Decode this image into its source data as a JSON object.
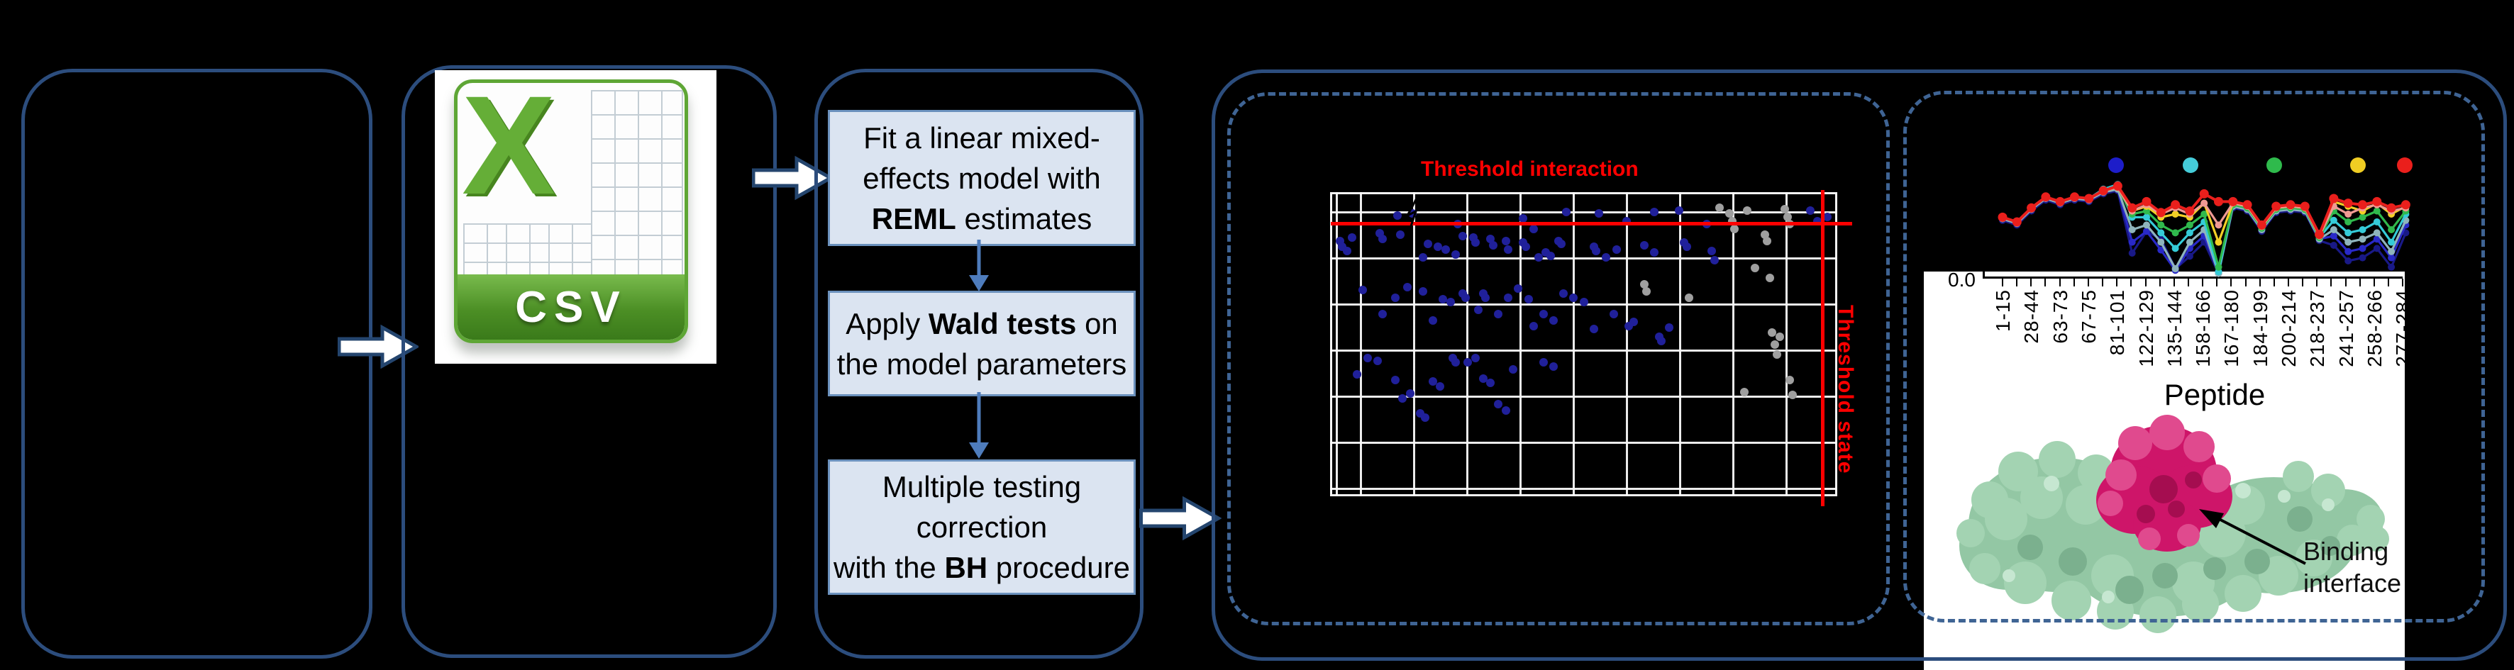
{
  "colors": {
    "panel_border": "#2c4d7d",
    "dashed_border": "#3f6494",
    "flow_box_fill": "#dbe4f1",
    "flow_box_border": "#6b91bd",
    "flow_arrow": "#4e7cbc",
    "threshold_red": "#ff0000",
    "csv_green": "#5ea635",
    "protein_green": "#93c7a4",
    "protein_magenta": "#ce1569"
  },
  "csv_icon": {
    "sheet_letter": "X",
    "banner_label": "CSV"
  },
  "flowchart": {
    "boxes": [
      {
        "name": "fit-model",
        "lines": [
          [
            [
              "Fit a linear mixed-",
              false
            ]
          ],
          [
            [
              "effects model with",
              false
            ]
          ],
          [
            [
              "REML",
              true
            ],
            [
              " estimates",
              false
            ]
          ]
        ]
      },
      {
        "name": "wald-tests",
        "lines": [
          [
            [
              "Apply ",
              false
            ],
            [
              "Wald tests",
              true
            ],
            [
              " on",
              false
            ]
          ],
          [
            [
              "the model parameters",
              false
            ]
          ]
        ]
      },
      {
        "name": "bh-correction",
        "lines": [
          [
            [
              "Multiple testing",
              false
            ]
          ],
          [
            [
              "correction",
              false
            ]
          ],
          [
            [
              "with the ",
              false
            ],
            [
              "BH",
              true
            ],
            [
              " procedure",
              false
            ]
          ]
        ]
      }
    ]
  },
  "protein": {
    "annotation_line1": "Binding",
    "annotation_line2": "interface"
  },
  "chart_data": [
    {
      "type": "scatter",
      "title": "Threshold interaction",
      "vline_label": "Threshold state",
      "xlabel": "",
      "ylabel": "",
      "coords_note": "points are fractions of the plot area, y measured downward from top",
      "threshold_hline_y": 0.098,
      "threshold_vline_x": 0.972,
      "grid": "white gridlines on black background",
      "series": [
        {
          "name": "significant-peptides",
          "color": "#20209a",
          "points": [
            [
              0.13,
              0.07
            ],
            [
              0.25,
              0.1
            ],
            [
              0.38,
              0.08
            ],
            [
              0.4,
              0.115
            ],
            [
              0.465,
              0.06
            ],
            [
              0.53,
              0.065
            ],
            [
              0.585,
              0.09
            ],
            [
              0.64,
              0.06
            ],
            [
              0.69,
              0.055
            ],
            [
              0.745,
              0.1
            ],
            [
              0.95,
              0.055
            ],
            [
              0.965,
              0.09
            ],
            [
              0.985,
              0.075
            ],
            [
              0.015,
              0.155
            ],
            [
              0.02,
              0.175
            ],
            [
              0.03,
              0.19
            ],
            [
              0.04,
              0.145
            ],
            [
              0.095,
              0.13
            ],
            [
              0.1,
              0.15
            ],
            [
              0.135,
              0.135
            ],
            [
              0.16,
              0.065
            ],
            [
              0.18,
              0.21
            ],
            [
              0.19,
              0.165
            ],
            [
              0.21,
              0.175
            ],
            [
              0.225,
              0.185
            ],
            [
              0.245,
              0.2
            ],
            [
              0.26,
              0.14
            ],
            [
              0.28,
              0.145
            ],
            [
              0.285,
              0.16
            ],
            [
              0.315,
              0.15
            ],
            [
              0.32,
              0.17
            ],
            [
              0.345,
              0.155
            ],
            [
              0.35,
              0.185
            ],
            [
              0.38,
              0.16
            ],
            [
              0.385,
              0.175
            ],
            [
              0.41,
              0.21
            ],
            [
              0.425,
              0.195
            ],
            [
              0.435,
              0.205
            ],
            [
              0.45,
              0.155
            ],
            [
              0.455,
              0.165
            ],
            [
              0.52,
              0.175
            ],
            [
              0.525,
              0.19
            ],
            [
              0.545,
              0.21
            ],
            [
              0.565,
              0.185
            ],
            [
              0.62,
              0.17
            ],
            [
              0.64,
              0.195
            ],
            [
              0.7,
              0.16
            ],
            [
              0.705,
              0.175
            ],
            [
              0.755,
              0.19
            ],
            [
              0.76,
              0.22
            ],
            [
              0.06,
              0.32
            ],
            [
              0.1,
              0.4
            ],
            [
              0.125,
              0.345
            ],
            [
              0.15,
              0.31
            ],
            [
              0.18,
              0.325
            ],
            [
              0.2,
              0.42
            ],
            [
              0.22,
              0.35
            ],
            [
              0.235,
              0.36
            ],
            [
              0.26,
              0.33
            ],
            [
              0.265,
              0.345
            ],
            [
              0.29,
              0.385
            ],
            [
              0.3,
              0.33
            ],
            [
              0.305,
              0.345
            ],
            [
              0.33,
              0.4
            ],
            [
              0.35,
              0.345
            ],
            [
              0.37,
              0.315
            ],
            [
              0.39,
              0.35
            ],
            [
              0.4,
              0.44
            ],
            [
              0.42,
              0.4
            ],
            [
              0.44,
              0.42
            ],
            [
              0.46,
              0.33
            ],
            [
              0.48,
              0.345
            ],
            [
              0.5,
              0.36
            ],
            [
              0.52,
              0.45
            ],
            [
              0.56,
              0.4
            ],
            [
              0.59,
              0.44
            ],
            [
              0.6,
              0.425
            ],
            [
              0.65,
              0.475
            ],
            [
              0.655,
              0.49
            ],
            [
              0.67,
              0.445
            ],
            [
              0.05,
              0.6
            ],
            [
              0.07,
              0.545
            ],
            [
              0.09,
              0.555
            ],
            [
              0.125,
              0.62
            ],
            [
              0.14,
              0.68
            ],
            [
              0.155,
              0.665
            ],
            [
              0.175,
              0.73
            ],
            [
              0.185,
              0.745
            ],
            [
              0.2,
              0.625
            ],
            [
              0.215,
              0.64
            ],
            [
              0.24,
              0.545
            ],
            [
              0.245,
              0.56
            ],
            [
              0.27,
              0.56
            ],
            [
              0.285,
              0.545
            ],
            [
              0.3,
              0.615
            ],
            [
              0.315,
              0.63
            ],
            [
              0.33,
              0.7
            ],
            [
              0.345,
              0.72
            ],
            [
              0.36,
              0.585
            ],
            [
              0.42,
              0.56
            ],
            [
              0.44,
              0.575
            ]
          ]
        },
        {
          "name": "non-significant-peptides",
          "color": "#9f9f9f",
          "points": [
            [
              0.77,
              0.045
            ],
            [
              0.79,
              0.065
            ],
            [
              0.795,
              0.09
            ],
            [
              0.8,
              0.115
            ],
            [
              0.825,
              0.055
            ],
            [
              0.86,
              0.135
            ],
            [
              0.865,
              0.155
            ],
            [
              0.9,
              0.05
            ],
            [
              0.905,
              0.075
            ],
            [
              0.91,
              0.1
            ],
            [
              0.62,
              0.3
            ],
            [
              0.625,
              0.325
            ],
            [
              0.71,
              0.345
            ],
            [
              0.84,
              0.245
            ],
            [
              0.87,
              0.28
            ],
            [
              0.875,
              0.46
            ],
            [
              0.88,
              0.5
            ],
            [
              0.885,
              0.535
            ],
            [
              0.89,
              0.475
            ],
            [
              0.91,
              0.62
            ],
            [
              0.915,
              0.67
            ],
            [
              0.82,
              0.66
            ]
          ]
        }
      ]
    },
    {
      "type": "line",
      "xlabel": "Peptide",
      "ytick_label": "0.0",
      "ylim": [
        0,
        1
      ],
      "categories": [
        "1-15",
        "28-44",
        "63-73",
        "67-75",
        "81-101",
        "122-129",
        "135-144",
        "158-166",
        "167-180",
        "184-199",
        "200-214",
        "218-237",
        "241-257",
        "258-266",
        "277-284"
      ],
      "legend_dot_colors": [
        "#1d1dc9",
        "#45ccd9",
        "#2fba4c",
        "#f0cd23",
        "#ea1f1c"
      ],
      "legend_x": [
        223,
        328,
        446,
        564,
        630
      ],
      "legend_y": 83,
      "series": [
        {
          "name": "navy",
          "color": "#191987",
          "values": [
            0.36,
            0.33,
            0.42,
            0.49,
            0.46,
            0.49,
            0.48,
            0.53,
            0.55,
            0.15,
            0.29,
            0.24,
            0.05,
            0.13,
            0.22,
            0.02,
            0.44,
            0.42,
            0.29,
            0.41,
            0.42,
            0.41,
            0.23,
            0.2,
            0.1,
            0.12,
            0.18,
            0.06,
            0.28
          ]
        },
        {
          "name": "blue",
          "color": "#2929c8",
          "values": [
            0.37,
            0.34,
            0.43,
            0.5,
            0.47,
            0.5,
            0.49,
            0.54,
            0.56,
            0.22,
            0.29,
            0.17,
            0.04,
            0.18,
            0.26,
            0.03,
            0.45,
            0.43,
            0.3,
            0.42,
            0.43,
            0.42,
            0.24,
            0.26,
            0.16,
            0.18,
            0.24,
            0.12,
            0.33
          ]
        },
        {
          "name": "steel",
          "color": "#8fb4bc",
          "values": [
            0.37,
            0.34,
            0.43,
            0.5,
            0.47,
            0.5,
            0.49,
            0.54,
            0.56,
            0.3,
            0.33,
            0.22,
            0.05,
            0.22,
            0.3,
            0.02,
            0.45,
            0.43,
            0.3,
            0.42,
            0.43,
            0.42,
            0.24,
            0.3,
            0.22,
            0.24,
            0.28,
            0.16,
            0.36
          ]
        },
        {
          "name": "cyan",
          "color": "#35cbd8",
          "values": [
            0.38,
            0.35,
            0.44,
            0.51,
            0.48,
            0.51,
            0.5,
            0.56,
            0.59,
            0.38,
            0.38,
            0.28,
            0.18,
            0.28,
            0.35,
            0.03,
            0.46,
            0.44,
            0.31,
            0.43,
            0.44,
            0.43,
            0.25,
            0.36,
            0.28,
            0.3,
            0.35,
            0.22,
            0.4
          ]
        },
        {
          "name": "green",
          "color": "#30b94d",
          "values": [
            0.38,
            0.35,
            0.44,
            0.51,
            0.48,
            0.51,
            0.5,
            0.55,
            0.57,
            0.4,
            0.42,
            0.33,
            0.28,
            0.33,
            0.4,
            0.06,
            0.46,
            0.44,
            0.31,
            0.43,
            0.44,
            0.43,
            0.25,
            0.42,
            0.35,
            0.38,
            0.42,
            0.3,
            0.42
          ]
        },
        {
          "name": "yellow",
          "color": "#f2cf26",
          "values": [
            0.38,
            0.35,
            0.44,
            0.51,
            0.48,
            0.51,
            0.5,
            0.55,
            0.57,
            0.42,
            0.45,
            0.38,
            0.4,
            0.38,
            0.47,
            0.22,
            0.47,
            0.45,
            0.32,
            0.44,
            0.45,
            0.44,
            0.26,
            0.48,
            0.45,
            0.42,
            0.47,
            0.4,
            0.45
          ]
        },
        {
          "name": "salmon",
          "color": "#f09a93",
          "values": [
            0.38,
            0.35,
            0.44,
            0.51,
            0.48,
            0.51,
            0.5,
            0.55,
            0.57,
            0.42,
            0.46,
            0.4,
            0.44,
            0.4,
            0.47,
            0.33,
            0.47,
            0.45,
            0.32,
            0.44,
            0.45,
            0.44,
            0.26,
            0.45,
            0.4,
            0.44,
            0.46,
            0.42,
            0.44
          ]
        },
        {
          "name": "red",
          "color": "#ea1f1c",
          "values": [
            0.38,
            0.35,
            0.44,
            0.51,
            0.48,
            0.51,
            0.5,
            0.55,
            0.58,
            0.44,
            0.48,
            0.41,
            0.46,
            0.42,
            0.53,
            0.48,
            0.48,
            0.46,
            0.33,
            0.45,
            0.46,
            0.45,
            0.27,
            0.5,
            0.47,
            0.46,
            0.48,
            0.44,
            0.46
          ]
        }
      ]
    }
  ]
}
